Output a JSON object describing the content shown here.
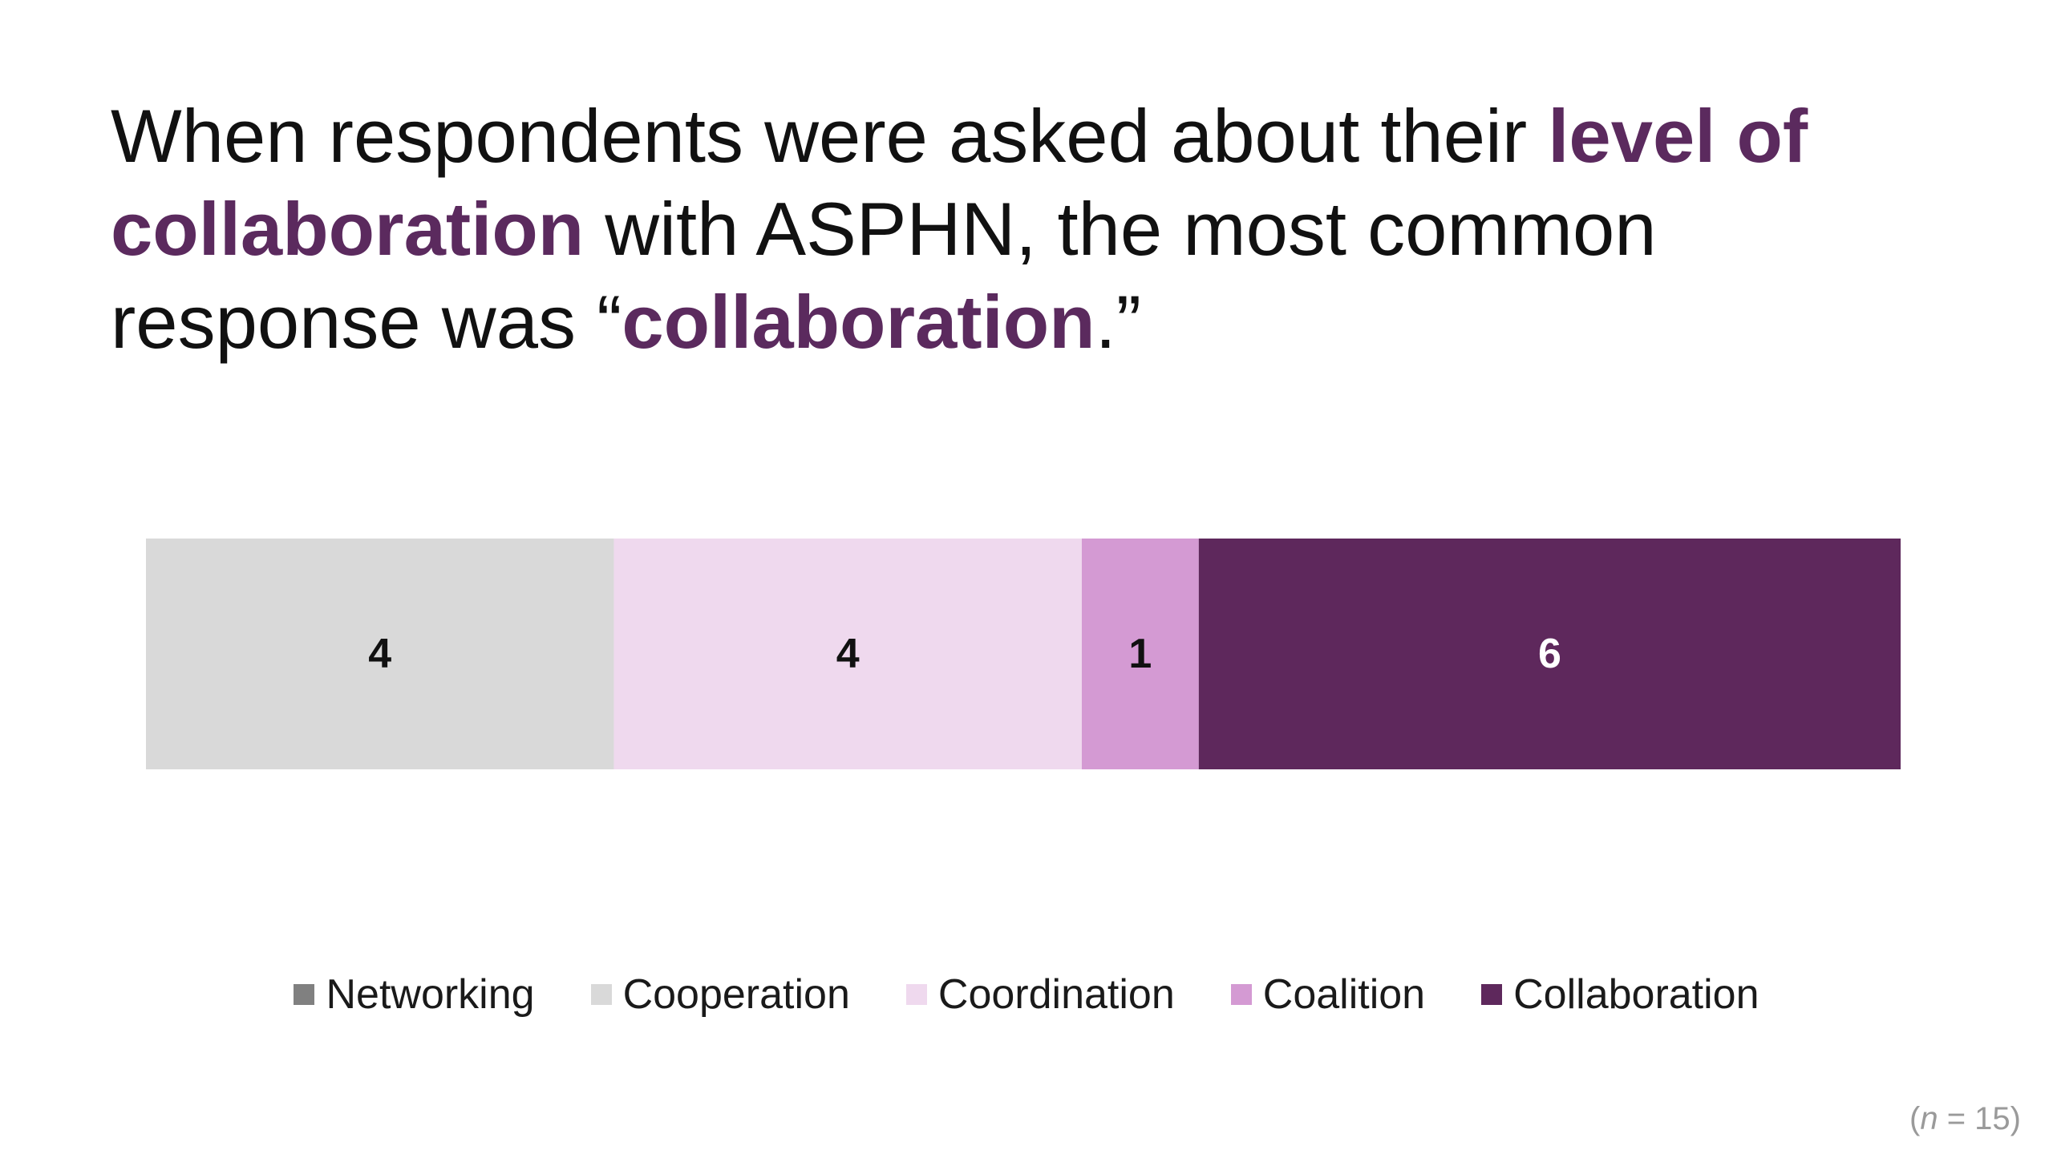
{
  "headline": {
    "part1": "When respondents were asked about their ",
    "highlight1": "level of collaboration",
    "part2": " with ASPHN, the most common response was “",
    "highlight2": "collaboration",
    "part3": ".”",
    "highlight_color": "#5b2a5e"
  },
  "footnote": {
    "open": "(",
    "n_symbol": "n",
    "rest": " = 15)"
  },
  "chart_data": {
    "type": "bar",
    "orientation": "horizontal-stacked",
    "total": 15,
    "categories": [
      "Networking",
      "Cooperation",
      "Coordination",
      "Coalition",
      "Collaboration"
    ],
    "series": [
      {
        "name": "Networking",
        "value": 0,
        "color": "#808080",
        "label_color": "#111111"
      },
      {
        "name": "Cooperation",
        "value": 4,
        "color": "#d9d9d9",
        "label_color": "#111111"
      },
      {
        "name": "Coordination",
        "value": 4,
        "color": "#efd9ee",
        "label_color": "#111111"
      },
      {
        "name": "Coalition",
        "value": 1,
        "color": "#d49ad3",
        "label_color": "#111111"
      },
      {
        "name": "Collaboration",
        "value": 6,
        "color": "#5e285c",
        "label_color": "#ffffff"
      }
    ],
    "legend_placement": "bottom",
    "grid": false
  }
}
